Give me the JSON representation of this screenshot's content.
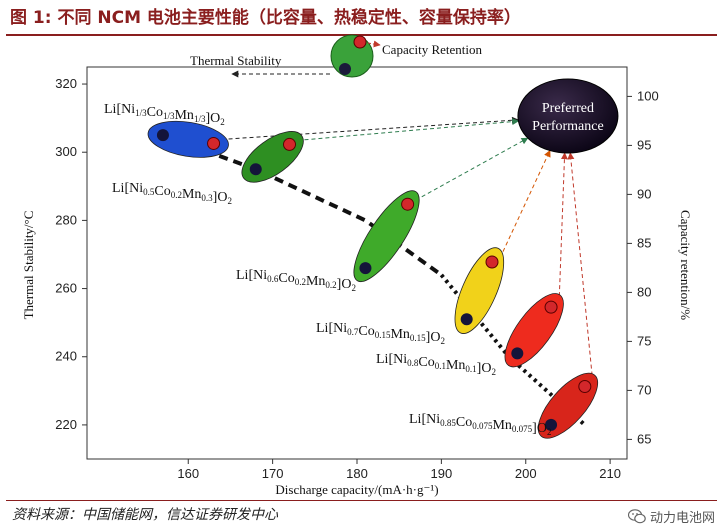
{
  "figure": {
    "title": "图 1: 不同 NCM 电池主要性能（比容量、热稳定性、容量保持率）",
    "source": "资料来源：中国储能网，信达证券研发中心",
    "watermark": "动力电池网"
  },
  "chart_data": {
    "type": "scatter",
    "xlabel": "Discharge capacity/(mA·h·g⁻¹)",
    "ylabel_left": "Thermal Stability/°C",
    "ylabel_right": "Capacity retention/%",
    "xlim": [
      148,
      212
    ],
    "ylim_left": [
      210,
      325
    ],
    "ylim_right": [
      63,
      103
    ],
    "xticks": [
      160,
      170,
      180,
      190,
      200,
      210
    ],
    "yticks_left": [
      220,
      240,
      260,
      280,
      300,
      320
    ],
    "yticks_right": [
      65,
      70,
      75,
      80,
      85,
      90,
      95,
      100
    ],
    "materials": [
      {
        "id": "ncm111",
        "label": "Li[Ni1/3Co1/3Mn1/3]O2",
        "color": "#1f4fd0",
        "capacity_start": 157,
        "capacity_end": 163,
        "thermal": 305,
        "retention": 95.2
      },
      {
        "id": "ncm523",
        "label": "Li[Ni0.5Co0.2Mn0.3]O2",
        "color": "#2e8f22",
        "capacity_start": 168,
        "capacity_end": 172,
        "thermal": 295,
        "retention": 95.1
      },
      {
        "id": "ncm622",
        "label": "Li[Ni0.6Co0.2Mn0.2]O2",
        "color": "#3faa2a",
        "capacity_start": 181,
        "capacity_end": 186,
        "thermal": 266,
        "retention": 89.0
      },
      {
        "id": "ncm71515",
        "label": "Li[Ni0.7Co0.15Mn0.15]O2",
        "color": "#f1d21a",
        "capacity_start": 193,
        "capacity_end": 196,
        "thermal": 251,
        "retention": 83.1
      },
      {
        "id": "ncm811",
        "label": "Li[Ni0.8Co0.1Mn0.1]O2",
        "color": "#ee2b1e",
        "capacity_start": 199,
        "capacity_end": 203,
        "thermal": 241,
        "retention": 78.5
      },
      {
        "id": "ncm85",
        "label": "Li[Ni0.85Co0.075Mn0.075]O2",
        "color": "#d8251b",
        "capacity_start": 203,
        "capacity_end": 207,
        "thermal": 220,
        "retention": 70.4
      }
    ],
    "thermal_trend": [
      {
        "x": 157,
        "y": 305
      },
      {
        "x": 168,
        "y": 295
      },
      {
        "x": 181,
        "y": 280
      },
      {
        "x": 190,
        "y": 264
      },
      {
        "x": 198,
        "y": 240
      },
      {
        "x": 207,
        "y": 220
      }
    ],
    "legend_markers": {
      "capacity_retention": "Capacity Retention",
      "thermal_stability": "Thermal Stability"
    },
    "preferred_performance": {
      "line1": "Preferred",
      "line2": "Performance",
      "x": 205,
      "retention": 98
    }
  }
}
